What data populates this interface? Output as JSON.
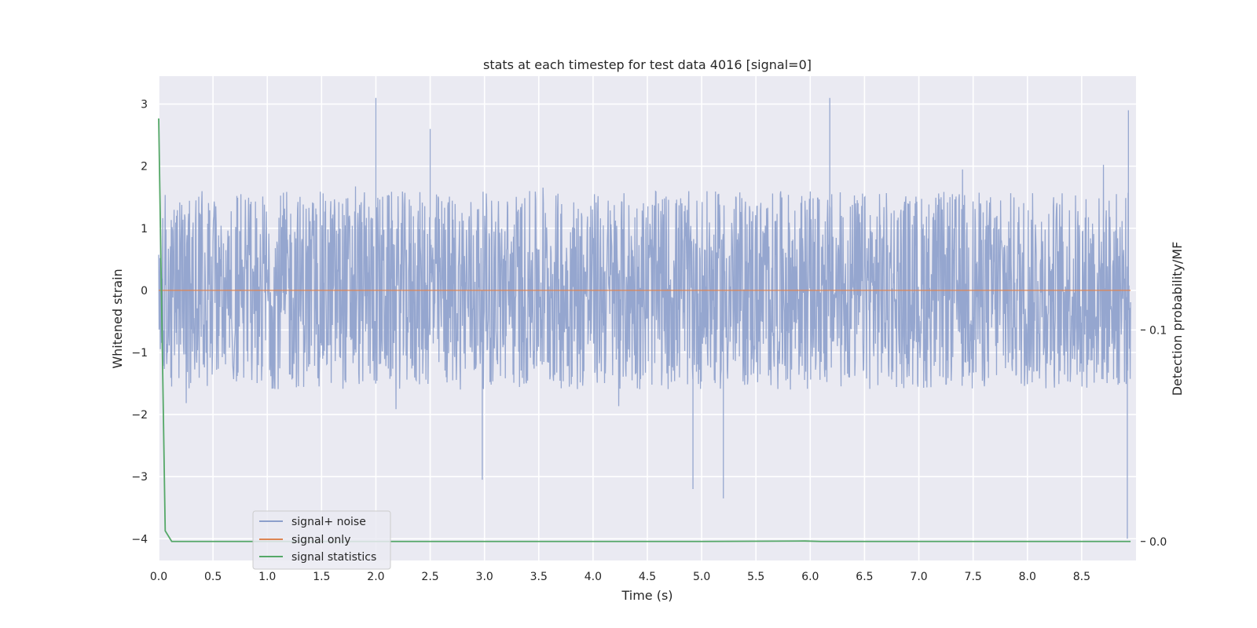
{
  "chart_data": {
    "type": "line",
    "title": "stats at each timestep for test data 4016 [signal=0]",
    "xlabel": "Time (s)",
    "ylabel": "Whitened strain",
    "ylabel_right": "Detection probability/MF",
    "xlim": [
      0.0,
      9.0
    ],
    "ylim": [
      -4.35,
      3.45
    ],
    "ylim_right": [
      -0.009,
      0.22
    ],
    "x_ticks": [
      "0.0",
      "0.5",
      "1.0",
      "1.5",
      "2.0",
      "2.5",
      "3.0",
      "3.5",
      "4.0",
      "4.5",
      "5.0",
      "5.5",
      "6.0",
      "6.5",
      "7.0",
      "7.5",
      "8.0",
      "8.5"
    ],
    "y_ticks": [
      "3",
      "2",
      "1",
      "0",
      "−1",
      "−2",
      "−3",
      "−4"
    ],
    "y_ticks_right": [
      "0.1",
      "0.0"
    ],
    "grid": true,
    "legend_position": "lower-left",
    "noise": {
      "duration_s": 8.95,
      "typical_max": 1.6,
      "typical_min": -1.6,
      "peaks": [
        {
          "x": 2.0,
          "y": 3.1
        },
        {
          "x": 2.5,
          "y": 2.6
        },
        {
          "x": 6.18,
          "y": 3.1
        },
        {
          "x": 8.93,
          "y": 2.9
        },
        {
          "x": 2.98,
          "y": -3.05
        },
        {
          "x": 4.92,
          "y": -3.2
        },
        {
          "x": 5.2,
          "y": -3.35
        },
        {
          "x": 8.92,
          "y": -4.0
        }
      ]
    },
    "series": [
      {
        "name": "signal+ noise",
        "axis": "left",
        "color": "#8c9fcb"
      },
      {
        "name": "signal only",
        "axis": "left",
        "color": "#dd8452",
        "x": [
          0.0,
          8.95
        ],
        "y": [
          0.0,
          0.0
        ]
      },
      {
        "name": "signal statistics",
        "axis": "right",
        "color": "#55a868",
        "x": [
          0.0,
          0.06,
          0.12,
          1.0,
          5.0,
          5.95,
          6.1,
          8.95
        ],
        "y": [
          0.2,
          0.005,
          0.0,
          0.0,
          0.0,
          0.0002,
          0.0,
          0.0
        ]
      }
    ]
  }
}
